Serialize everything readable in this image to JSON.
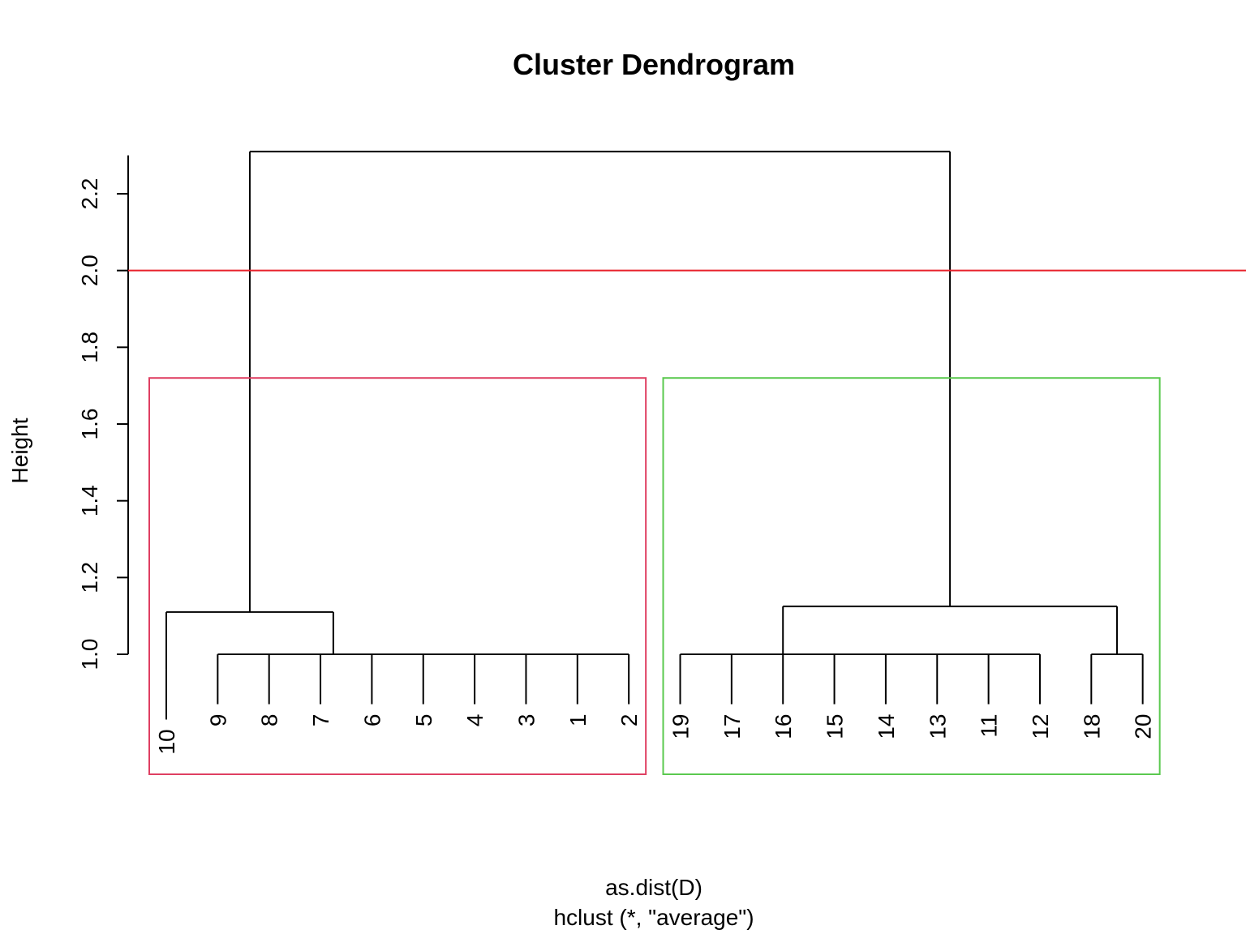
{
  "chart_data": {
    "type": "dendrogram",
    "title": "Cluster Dendrogram",
    "xlabel": "as.dist(D)",
    "sub": "hclust (*, \"average\")",
    "ylabel": "Height",
    "ylim": [
      1.0,
      2.3
    ],
    "yticks": [
      1.0,
      1.2,
      1.4,
      1.6,
      1.8,
      2.0,
      2.2
    ],
    "ytick_labels": [
      "1.0",
      "1.2",
      "1.4",
      "1.6",
      "1.8",
      "2.0",
      "2.2"
    ],
    "leaves": [
      "10",
      "9",
      "8",
      "7",
      "6",
      "5",
      "4",
      "3",
      "1",
      "2",
      "19",
      "17",
      "16",
      "15",
      "14",
      "13",
      "11",
      "12",
      "18",
      "20"
    ],
    "leaf_heights": [
      0.96,
      1.0,
      1.0,
      1.0,
      1.0,
      1.0,
      1.0,
      1.0,
      1.0,
      1.0,
      1.0,
      1.0,
      1.0,
      1.0,
      1.0,
      1.0,
      1.0,
      1.0,
      1.0,
      1.0
    ],
    "merges": [
      {
        "left": [
          1
        ],
        "right": [
          2,
          3,
          4,
          5,
          6,
          7,
          8,
          9
        ],
        "height": 1.0
      },
      {
        "left": [
          0
        ],
        "right": [
          "m0"
        ],
        "height": 1.11
      },
      {
        "left": [
          10
        ],
        "right": [
          11,
          12,
          13,
          14,
          15,
          16,
          17
        ],
        "height": 1.0
      },
      {
        "left": [
          18
        ],
        "right": [
          19
        ],
        "height": 1.0
      },
      {
        "left": [
          "m2"
        ],
        "right": [
          "m3"
        ],
        "height": 1.125
      },
      {
        "left": [
          "m1"
        ],
        "right": [
          "m4"
        ],
        "height": 2.31
      }
    ],
    "cut_height": 2.0,
    "cut_color": "#e8202a",
    "clusters": [
      {
        "leaves": [
          0,
          9
        ],
        "color": "#df3f62"
      },
      {
        "leaves": [
          10,
          19
        ],
        "color": "#5bc94f"
      }
    ]
  }
}
